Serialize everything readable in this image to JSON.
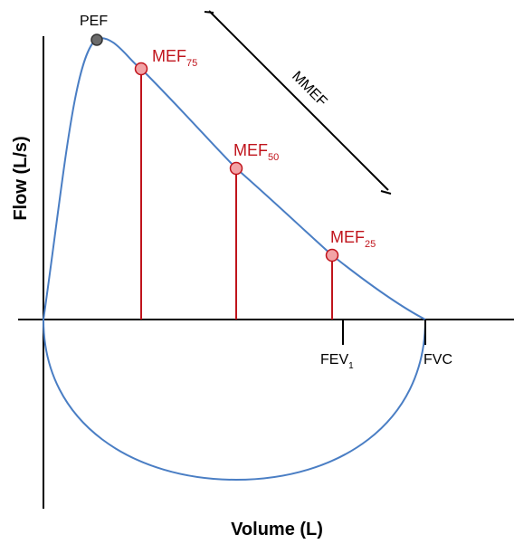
{
  "axes": {
    "x_title": "Volume (L)",
    "y_title": "Flow (L/s)"
  },
  "points": {
    "pef": {
      "label": "PEF",
      "color": "#6b6b6b"
    },
    "mef75": {
      "label": "MEF",
      "sub": "75",
      "color": "#c0141c"
    },
    "mef50": {
      "label": "MEF",
      "sub": "50",
      "color": "#c0141c"
    },
    "mef25": {
      "label": "MEF",
      "sub": "25",
      "color": "#c0141c"
    }
  },
  "ticks": {
    "fev1": {
      "label": "FEV",
      "sub": "1"
    },
    "fvc": {
      "label": "FVC"
    }
  },
  "mmef": {
    "label": "MMEF"
  },
  "colors": {
    "curve": "#4a7ec4",
    "marker_fill": "#f2a3a6",
    "marker_stroke": "#c0141c",
    "pef_fill": "#6b6b6b",
    "axis": "#000000"
  }
}
